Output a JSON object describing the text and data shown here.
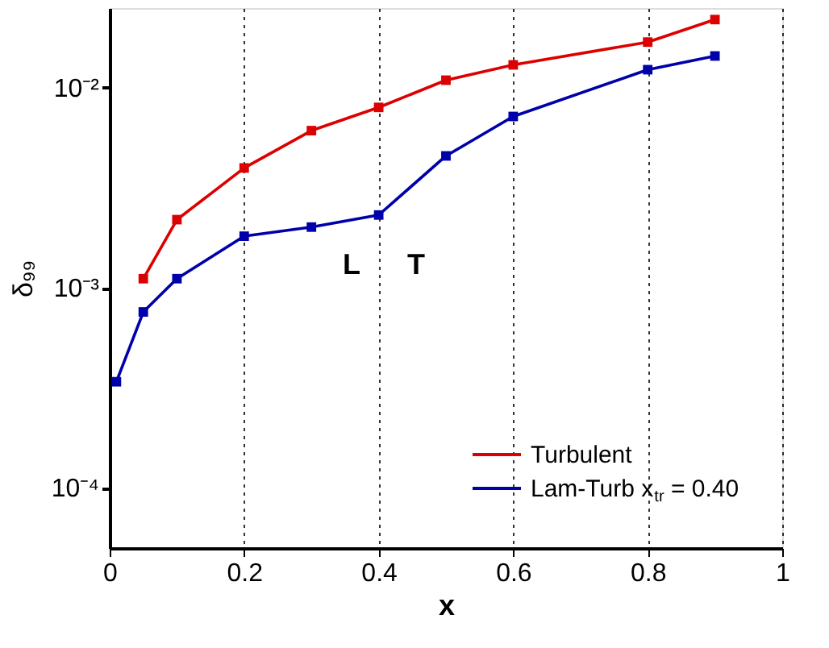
{
  "chart_data": {
    "type": "line",
    "xlabel": "x",
    "ylabel": "δ₉₉",
    "xlim": [
      0,
      1
    ],
    "xticks": [
      0,
      0.2,
      0.4,
      0.6,
      0.8,
      1
    ],
    "ylim": [
      5e-05,
      0.025
    ],
    "yticks": [
      {
        "value": 0.0001,
        "label": "10⁻⁴"
      },
      {
        "value": 0.001,
        "label": "10⁻³"
      },
      {
        "value": 0.01,
        "label": "10⁻²"
      }
    ],
    "log": "y",
    "grid": "x",
    "legend": "bottom right",
    "marker": "square",
    "line_style": "solid",
    "series": [
      {
        "name": "Turbulent",
        "color": "#dd0000",
        "x": [
          0.05,
          0.1,
          0.2,
          0.3,
          0.4,
          0.5,
          0.6,
          0.8,
          0.9
        ],
        "values": [
          0.00111,
          0.00219,
          0.00397,
          0.0061,
          0.00797,
          0.0109,
          0.013,
          0.0169,
          0.0219
        ]
      },
      {
        "name": "Lam-Turb x$_{tr}$ = 0.40",
        "color": "#0000aa",
        "x": [
          0.01,
          0.05,
          0.1,
          0.2,
          0.3,
          0.4,
          0.5,
          0.6,
          0.8,
          0.9
        ],
        "values": [
          0.000339,
          0.000757,
          0.00111,
          0.00181,
          0.00201,
          0.00231,
          0.00456,
          0.00718,
          0.0123,
          0.0144
        ]
      }
    ],
    "annotations": [
      "L",
      "T"
    ]
  }
}
